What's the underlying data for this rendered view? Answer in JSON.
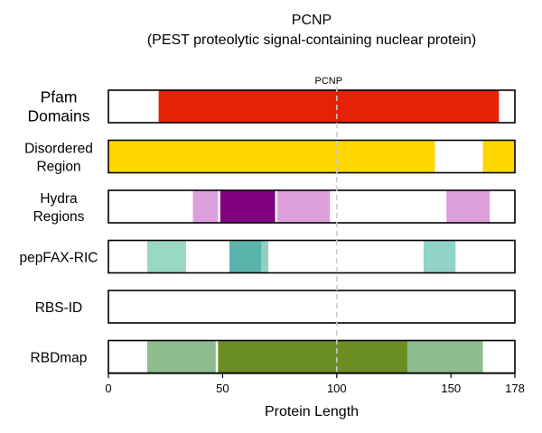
{
  "chart_data": {
    "type": "track",
    "title": [
      "PCNP",
      "(PEST proteolytic signal-containing nuclear protein)"
    ],
    "xlabel": "Protein Length",
    "xlim": [
      0,
      178
    ],
    "xticks": [
      0,
      50,
      100,
      150,
      178
    ],
    "marker": {
      "position": 100,
      "label": "PCNP",
      "color": "#cccccc"
    },
    "tracks": [
      {
        "name": "Pfam Domains",
        "label_lines": [
          "Pfam",
          "Domains"
        ],
        "large": true,
        "segments": [
          {
            "start": 22,
            "end": 171,
            "color": "#e32206"
          }
        ]
      },
      {
        "name": "Disordered Region",
        "label_lines": [
          "Disordered",
          "Region"
        ],
        "segments": [
          {
            "start": 0,
            "end": 143,
            "color": "#ffd700"
          },
          {
            "start": 164,
            "end": 178,
            "color": "#ffd700"
          }
        ]
      },
      {
        "name": "Hydra Regions",
        "label_lines": [
          "Hydra",
          "Regions"
        ],
        "segments": [
          {
            "start": 37,
            "end": 48,
            "color": "#dda0dd"
          },
          {
            "start": 49,
            "end": 73,
            "color": "#800080"
          },
          {
            "start": 74,
            "end": 97,
            "color": "#dda0dd"
          },
          {
            "start": 148,
            "end": 167,
            "color": "#dda0dd"
          }
        ]
      },
      {
        "name": "pepFAX-RIC",
        "label_lines": [
          "pepFAX-RIC"
        ],
        "segments": [
          {
            "start": 17,
            "end": 34,
            "color": "#99d8c0"
          },
          {
            "start": 53,
            "end": 67,
            "color": "#5ab4ac"
          },
          {
            "start": 67,
            "end": 70,
            "color": "#8fcfc4"
          },
          {
            "start": 138,
            "end": 152,
            "color": "#91d3c6"
          }
        ]
      },
      {
        "name": "RBS-ID",
        "label_lines": [
          "RBS-ID"
        ],
        "segments": []
      },
      {
        "name": "RBDmap",
        "label_lines": [
          "RBDmap"
        ],
        "segments": [
          {
            "start": 17,
            "end": 47,
            "color": "#8fbc8f"
          },
          {
            "start": 48,
            "end": 131,
            "color": "#6b8e23"
          },
          {
            "start": 131,
            "end": 164,
            "color": "#8fbc8f"
          }
        ]
      }
    ]
  }
}
